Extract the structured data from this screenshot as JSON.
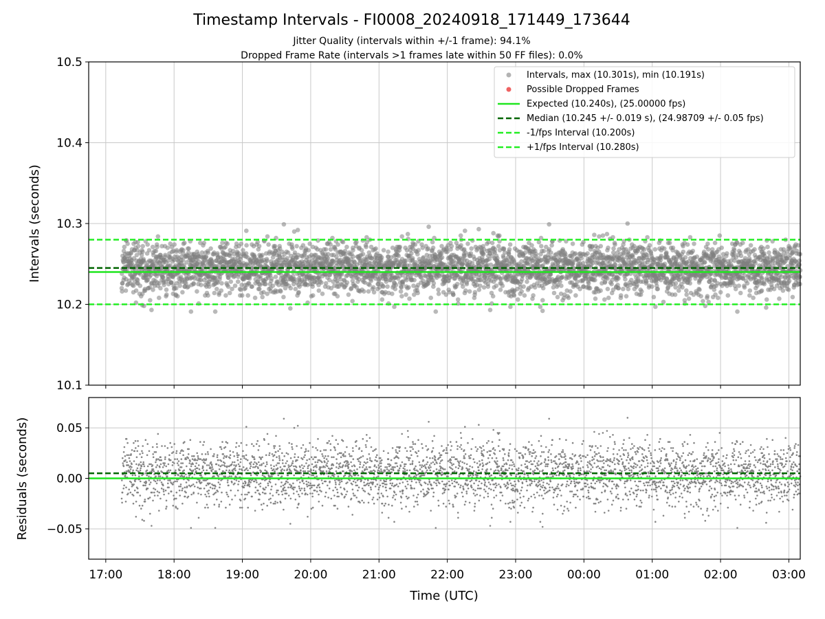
{
  "chart_data": {
    "title": "Timestamp Intervals - FI0008_20240918_171449_173644",
    "subtitle_1": "Jitter Quality (intervals within +/-1 frame): 94.1%",
    "subtitle_2": "Dropped Frame Rate (intervals >1 frames late within 50 FF files): 0.0%",
    "xlabel": "Time (UTC)",
    "x_tick_labels": [
      "17:00",
      "18:00",
      "19:00",
      "20:00",
      "21:00",
      "22:00",
      "23:00",
      "00:00",
      "01:00",
      "02:00",
      "03:00"
    ],
    "x_range": [
      "2024-09-18T16:45",
      "2024-09-19T03:10"
    ],
    "data_time_range": [
      "2024-09-18T17:14",
      "2024-09-19T03:10"
    ],
    "colors": {
      "intervals": "#808080",
      "dropped": "#ef6262",
      "expected": "#1ee61e",
      "median": "#006400",
      "bounds": "#22ee22",
      "grid": "#c8c8c8"
    },
    "panels": [
      {
        "type": "scatter",
        "ylabel": "Intervals (seconds)",
        "ylim": [
          10.1,
          10.5
        ],
        "y_ticks": [
          10.1,
          10.2,
          10.3,
          10.4,
          10.5
        ],
        "y_tick_labels": [
          "10.1",
          "10.2",
          "10.3",
          "10.4",
          "10.5"
        ],
        "grid": true,
        "legend_placement": "upper-right",
        "series": [
          {
            "name": "Intervals, max (10.301s), min (10.191s)",
            "kind": "scatter",
            "center": 10.245,
            "spread": 0.019,
            "max": 10.301,
            "min": 10.191,
            "approx_count": 3800
          },
          {
            "name": "Possible Dropped Frames",
            "kind": "scatter",
            "count": 0
          },
          {
            "name": "Expected (10.240s), (25.00000 fps)",
            "kind": "hline",
            "y": 10.24,
            "style": "solid"
          },
          {
            "name": "Median (10.245 +/- 0.019 s), (24.98709 +/- 0.05 fps)",
            "kind": "hline",
            "y": 10.245,
            "style": "dashed"
          },
          {
            "name": "-1/fps Interval (10.200s)",
            "kind": "hline",
            "y": 10.2,
            "style": "dashed"
          },
          {
            "name": "+1/fps Interval (10.280s)",
            "kind": "hline",
            "y": 10.28,
            "style": "dashed"
          }
        ]
      },
      {
        "type": "scatter",
        "ylabel": "Residuals (seconds)",
        "ylim": [
          -0.08,
          0.08
        ],
        "y_ticks": [
          -0.05,
          0,
          0.05
        ],
        "y_tick_labels": [
          "−0.05",
          "0.00",
          "0.05"
        ],
        "grid": true,
        "series": [
          {
            "kind": "scatter",
            "center": 0.005,
            "spread": 0.019,
            "max": 0.061,
            "min": -0.049,
            "approx_count": 3800
          },
          {
            "kind": "hline",
            "y": 0,
            "style": "solid"
          },
          {
            "kind": "hline",
            "y": 0.005,
            "style": "dashed"
          }
        ]
      }
    ]
  }
}
